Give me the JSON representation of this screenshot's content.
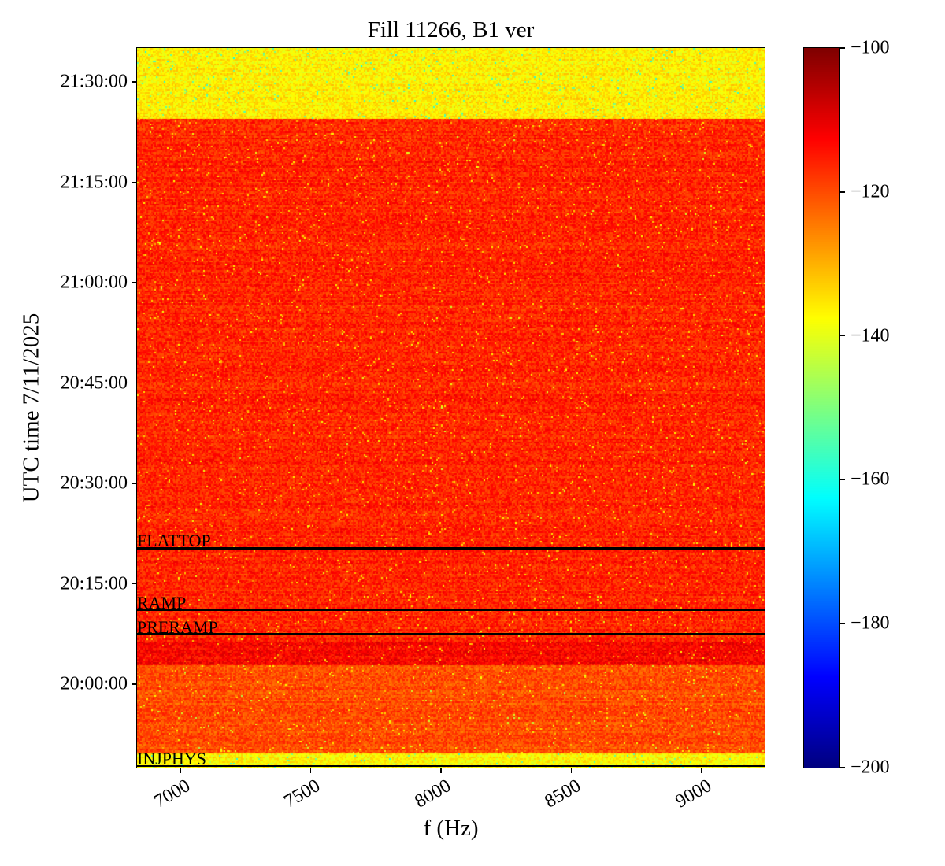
{
  "chart_data": {
    "type": "heatmap",
    "title": "Fill 11266, B1 ver",
    "xlabel": "f (Hz)",
    "ylabel": "UTC time 7/11/2025",
    "xlim": [
      6834,
      9242
    ],
    "ylim": [
      "19:47:32",
      "21:35:04"
    ],
    "xticks": [
      7000,
      7500,
      8000,
      8500,
      9000
    ],
    "xtick_labels": [
      "7000",
      "7500",
      "8000",
      "8500",
      "9000"
    ],
    "yticks": [
      "20:00:00",
      "20:15:00",
      "20:30:00",
      "20:45:00",
      "21:00:00",
      "21:15:00",
      "21:30:00"
    ],
    "colormap": "jet",
    "colorbar": {
      "range": [
        -200,
        -100
      ],
      "ticks": [
        "-100",
        "-120",
        "-140",
        "-160",
        "-180",
        "-200"
      ]
    },
    "events": [
      {
        "label": "FLATTOP",
        "time": "20:20:18"
      },
      {
        "label": "RAMP",
        "time": "20:11:07"
      },
      {
        "label": "PRERAMP",
        "time": "20:07:28"
      },
      {
        "label": "INJPHYS",
        "time": "19:47:32"
      }
    ],
    "approx_levels": [
      {
        "from": "19:47:32",
        "to": "19:49:50",
        "level": -137
      },
      {
        "from": "19:49:50",
        "to": "20:03:00",
        "level": -120
      },
      {
        "from": "20:03:00",
        "to": "20:06:30",
        "level": -113
      },
      {
        "from": "20:06:30",
        "to": "21:24:42",
        "level": -116
      },
      {
        "from": "21:24:42",
        "to": "21:35:04",
        "level": -136
      }
    ]
  }
}
